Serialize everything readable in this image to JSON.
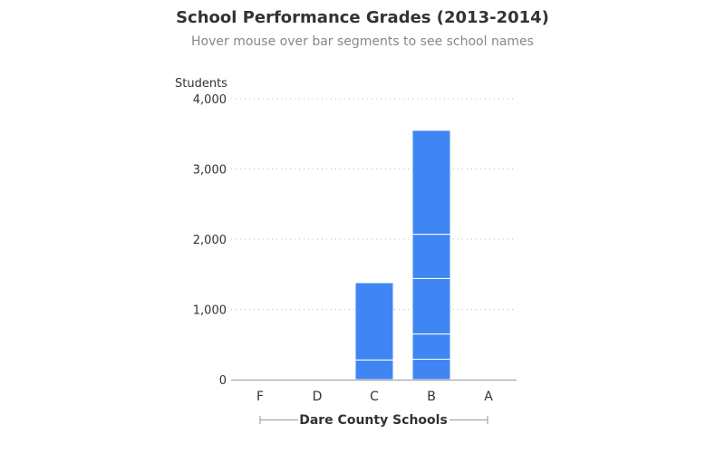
{
  "title": "School Performance Grades (2013-2014)",
  "subtitle": "Hover mouse over bar segments to see school names",
  "chart_data": {
    "type": "bar",
    "stacked": true,
    "title": "School Performance Grades (2013-2014)",
    "subtitle": "Hover mouse over bar segments to see school names",
    "ylabel": "Students",
    "xlabel": "Dare County Schools",
    "categories": [
      "F",
      "D",
      "C",
      "B",
      "A"
    ],
    "ylim": [
      0,
      4000
    ],
    "yticks": [
      0,
      1000,
      2000,
      3000,
      4000
    ],
    "ytick_labels": [
      "0",
      "1,000",
      "2,000",
      "3,000",
      "4,000"
    ],
    "grid": true,
    "segments": [
      [],
      [],
      [
        280,
        1100
      ],
      [
        290,
        360,
        790,
        630,
        1480
      ],
      []
    ],
    "totals": [
      0,
      0,
      1380,
      3550,
      0
    ],
    "bar_color": "#3f86f4",
    "axis_color": "#999999",
    "grid_color": "#bbbbbb",
    "text_color": "#333333"
  }
}
